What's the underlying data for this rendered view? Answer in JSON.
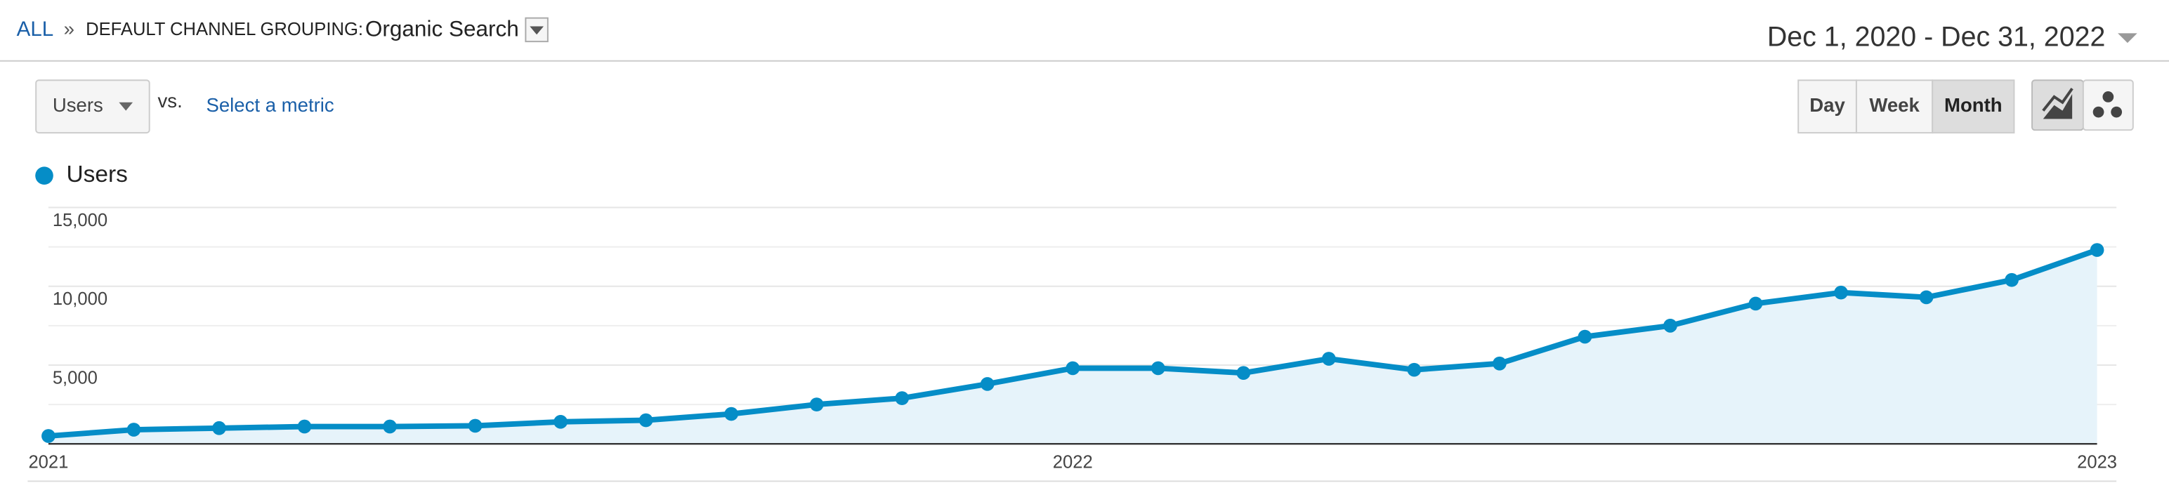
{
  "breadcrumb": {
    "all": "ALL",
    "separator": "»",
    "dimension": "DEFAULT CHANNEL GROUPING:",
    "value": "Organic Search"
  },
  "date_range": "Dec 1, 2020 - Dec 31, 2022",
  "controls": {
    "metric": "Users",
    "vs": "vs.",
    "select_metric": "Select a metric",
    "granularity": [
      "Day",
      "Week",
      "Month"
    ],
    "selected_granularity": 2
  },
  "chart_data": {
    "type": "line",
    "categories": [
      "2021",
      null,
      null,
      null,
      null,
      null,
      null,
      null,
      null,
      null,
      null,
      null,
      "2022",
      null,
      null,
      null,
      null,
      null,
      null,
      null,
      null,
      null,
      null,
      null,
      "2023"
    ],
    "series": [
      {
        "name": "Users",
        "color": "#058dc7",
        "values": [
          500,
          900,
          1000,
          1100,
          1100,
          1150,
          1400,
          1500,
          1900,
          2500,
          2900,
          3800,
          4800,
          4800,
          4500,
          5400,
          4700,
          5100,
          6800,
          7500,
          8900,
          9600,
          9300,
          10400,
          12300
        ]
      }
    ],
    "ylim": [
      0,
      15000
    ],
    "yticks": [
      {
        "value": 5000,
        "label": "5,000"
      },
      {
        "value": 10000,
        "label": "10,000"
      },
      {
        "value": 15000,
        "label": "15,000"
      }
    ],
    "minor_yticks": [
      2500,
      7500,
      12500
    ],
    "grid": true,
    "area": true,
    "area_color": "#e6f3fa"
  }
}
